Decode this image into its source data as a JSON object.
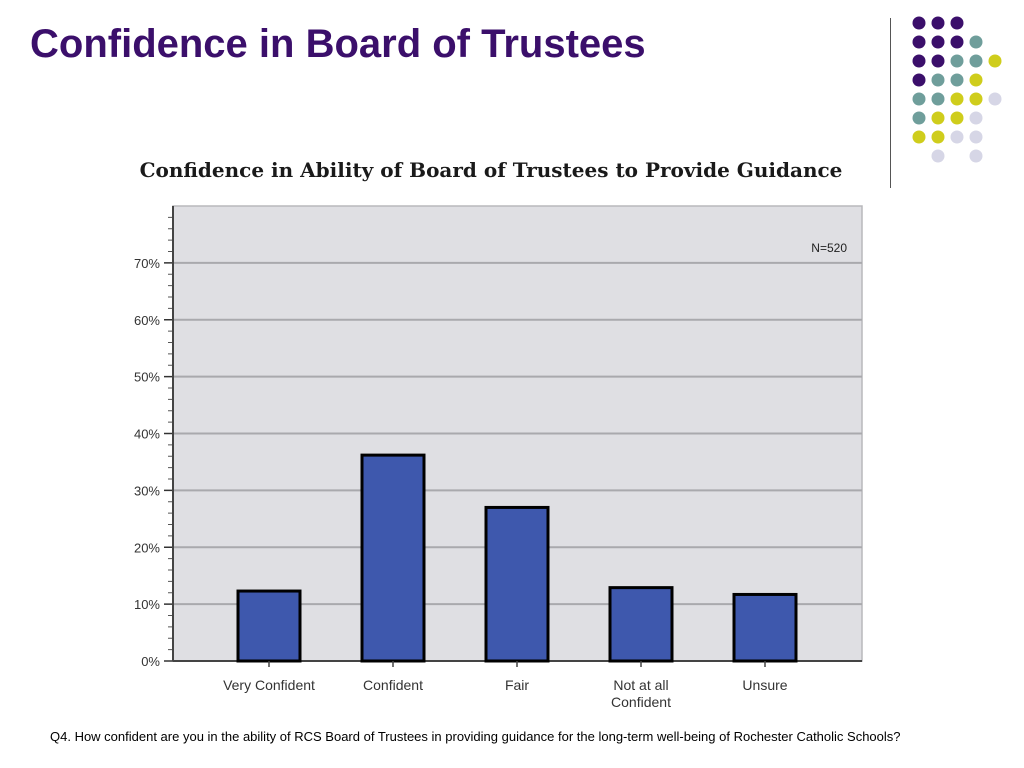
{
  "slide": {
    "title": "Confidence in Board of Trustees",
    "footnote": "Q4. How confident are you in the ability of RCS Board of Trustees in providing guidance for the long-term well-being of Rochester Catholic Schools?"
  },
  "decoration": {
    "dot_colors": {
      "purple": "#3b0f6b",
      "teal": "#6f9e9b",
      "yellow": "#cfcd1c",
      "lavender": "#d6d6e6"
    },
    "dot_grid": [
      [
        "purple",
        "purple",
        "purple",
        null,
        null
      ],
      [
        "purple",
        "purple",
        "purple",
        "teal",
        null
      ],
      [
        "purple",
        "purple",
        "teal",
        "teal",
        "yellow"
      ],
      [
        "purple",
        "teal",
        "teal",
        "yellow",
        null
      ],
      [
        "teal",
        "teal",
        "yellow",
        "yellow",
        "lavender"
      ],
      [
        "teal",
        "yellow",
        "yellow",
        "lavender",
        null
      ],
      [
        "yellow",
        "yellow",
        "lavender",
        "lavender",
        null
      ],
      [
        null,
        "lavender",
        null,
        "lavender",
        null
      ]
    ]
  },
  "chart_data": {
    "type": "bar",
    "title": "Confidence in Ability of Board of Trustees to Provide Guidance",
    "annotation": "N=520",
    "categories": [
      [
        "Very Confident"
      ],
      [
        "Confident"
      ],
      [
        "Fair"
      ],
      [
        "Not at all",
        "Confident"
      ],
      [
        "Unsure"
      ]
    ],
    "values": [
      12.3,
      36.2,
      27.0,
      12.9,
      11.7
    ],
    "ylim": [
      0,
      80
    ],
    "yticks": [
      0,
      10,
      20,
      30,
      40,
      50,
      60,
      70
    ],
    "ytick_labels": [
      "0%",
      "10%",
      "20%",
      "30%",
      "40%",
      "50%",
      "60%",
      "70%"
    ],
    "grid": true,
    "colors": {
      "bar": "#3e58ad",
      "bar_outline": "#000000",
      "plot_background": "#dfdfe3",
      "gridline": "#a9a9ad"
    }
  }
}
